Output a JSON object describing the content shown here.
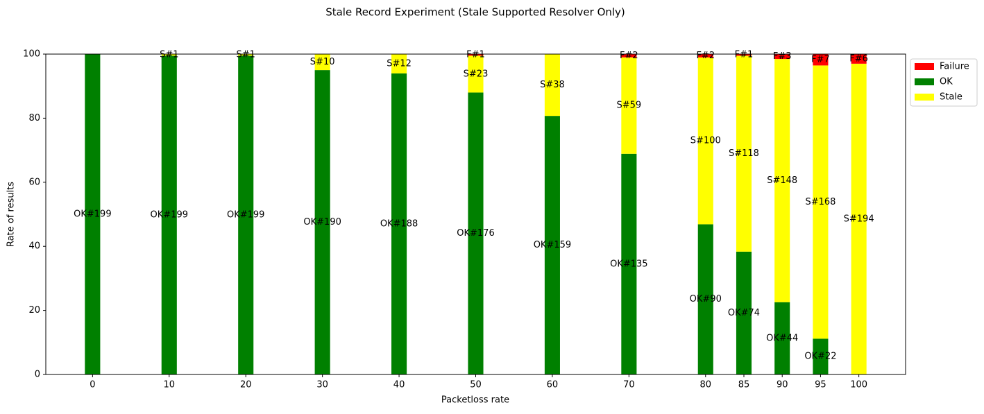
{
  "chart_data": {
    "type": "stacked_bar",
    "title": "Stale Record Experiment (Stale Supported Resolver Only)",
    "x_label": "Packetloss rate",
    "y_label": "Rate of results",
    "x": [
      0,
      10,
      20,
      30,
      40,
      50,
      60,
      70,
      80,
      85,
      90,
      95,
      100
    ],
    "xlim": [
      -6.1,
      106.1
    ],
    "xticks": [
      0,
      10,
      20,
      30,
      40,
      50,
      60,
      70,
      80,
      85,
      90,
      95,
      100
    ],
    "ylim": [
      0,
      100
    ],
    "yticks": [
      0,
      20,
      40,
      60,
      80,
      100
    ],
    "bar_width": 2,
    "grid": false,
    "legend": "outside upper right",
    "series": [
      {
        "name": "OK",
        "color": "#008000",
        "values": [
          100,
          99.5,
          99.5,
          95,
          94,
          88,
          80.71,
          68.88,
          46.88,
          38.34,
          22.56,
          11.17,
          0
        ],
        "labels": [
          "OK#199",
          "OK#199",
          "OK#199",
          "OK#190",
          "OK#188",
          "OK#176",
          "OK#159",
          "OK#135",
          "OK#90",
          "OK#74",
          "OK#44",
          "OK#22",
          null
        ]
      },
      {
        "name": "Stale",
        "color": "#ffff00",
        "values": [
          0,
          0.5,
          0.5,
          5,
          6,
          11.5,
          19.29,
          30.1,
          52.08,
          61.14,
          75.9,
          85.28,
          97
        ],
        "labels": [
          null,
          "S#1",
          "S#1",
          "S#10",
          "S#12",
          "S#23",
          "S#38",
          "S#59",
          "S#100",
          "S#118",
          "S#148",
          "S#168",
          "S#194"
        ]
      },
      {
        "name": "Failure",
        "color": "#ff0000",
        "values": [
          0,
          0,
          0,
          0,
          0,
          0.5,
          0,
          1.02,
          1.04,
          0.52,
          1.54,
          3.55,
          3
        ],
        "labels": [
          null,
          null,
          null,
          null,
          null,
          "F#1",
          null,
          "F#2",
          "F#2",
          "F#1",
          "F#3",
          "F#7",
          "F#6"
        ]
      }
    ],
    "legend_order": [
      2,
      0,
      1
    ]
  }
}
